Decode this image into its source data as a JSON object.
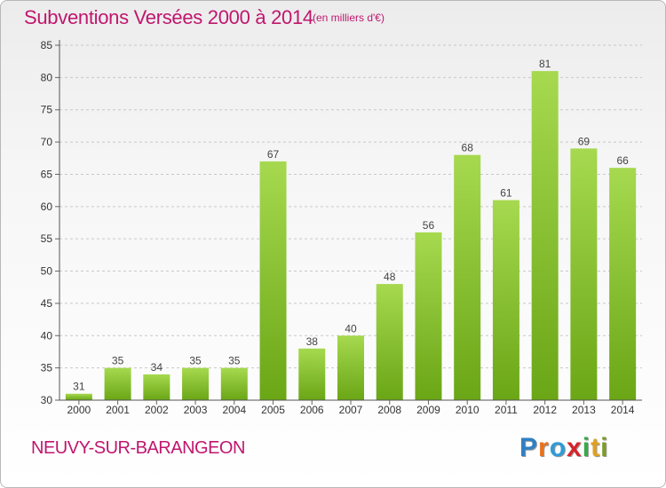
{
  "page": {
    "title": "Subventions Versées 2000 à 2014",
    "unit_note": "(en milliers d'€)",
    "commune": "NEUVY-SUR-BARANGEON",
    "logo": {
      "text": "Proxiti",
      "letters": [
        "P",
        "r",
        "o",
        "x",
        "i",
        "t",
        "i"
      ],
      "colors": [
        "#2f7fc4",
        "#e8731f",
        "#2f9bd8",
        "#d8232a",
        "#3aa84a",
        "#e0a020",
        "#7d9b2b"
      ]
    }
  },
  "chart_data": {
    "type": "bar",
    "categories": [
      "2000",
      "2001",
      "2002",
      "2003",
      "2004",
      "2005",
      "2006",
      "2007",
      "2008",
      "2009",
      "2010",
      "2011",
      "2012",
      "2013",
      "2014"
    ],
    "values": [
      31,
      35,
      34,
      35,
      35,
      67,
      38,
      40,
      48,
      56,
      68,
      61,
      81,
      69,
      66
    ],
    "data_labels": [
      "31",
      "35",
      "34",
      "35",
      "35",
      "67",
      "38",
      "40",
      "48",
      "56",
      "68",
      "61",
      "81",
      "69",
      "66"
    ],
    "ylim": [
      30,
      85
    ],
    "yticks": [
      30,
      35,
      40,
      45,
      50,
      55,
      60,
      65,
      70,
      75,
      80,
      85
    ],
    "grid": "horizontal dashed",
    "bar_color_light": "#a6d94f",
    "bar_color_dark": "#6aa616"
  }
}
